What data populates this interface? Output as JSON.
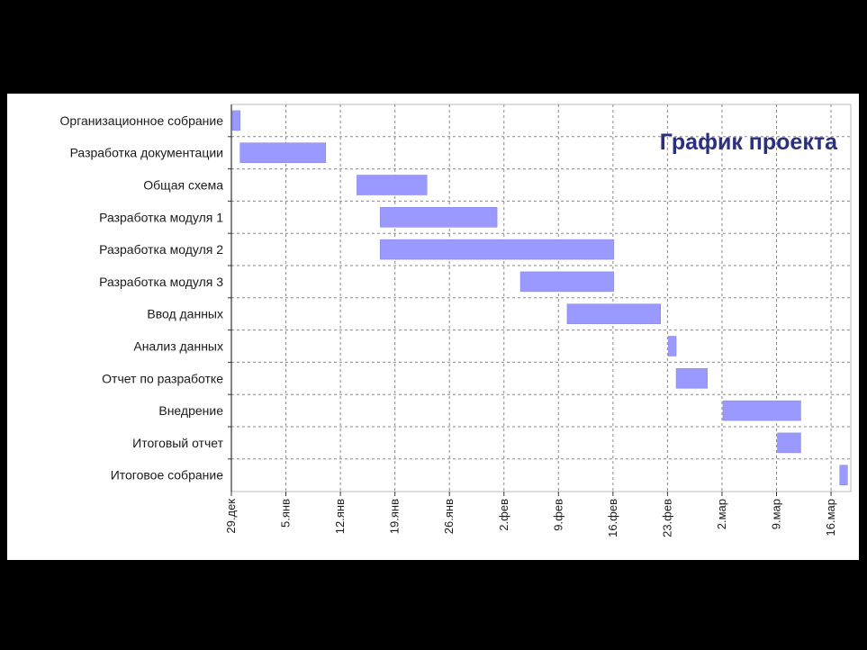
{
  "chart_data": {
    "type": "gantt",
    "title": "График проекта",
    "tasks": [
      {
        "name": "Организационное собрание",
        "start": "29 дек",
        "end": "30 дек"
      },
      {
        "name": "Разработка документации",
        "start": "30 дек",
        "end": "10 янв"
      },
      {
        "name": "Общая схема",
        "start": "14 янв",
        "end": "23 янв"
      },
      {
        "name": "Разработка модуля 1",
        "start": "17 янв",
        "end": "1 фев"
      },
      {
        "name": "Разработка модуля 2",
        "start": "17 янв",
        "end": "16 фев"
      },
      {
        "name": "Разработка модуля 3",
        "start": "4 фев",
        "end": "16 фев"
      },
      {
        "name": "Ввод данных",
        "start": "10 фев",
        "end": "22 фев"
      },
      {
        "name": "Анализ данных",
        "start": "23 фев",
        "end": "24 фев"
      },
      {
        "name": "Отчет по разработке",
        "start": "24 фев",
        "end": "28 фев"
      },
      {
        "name": "Внедрение",
        "start": "2 мар",
        "end": "12 мар"
      },
      {
        "name": "Итоговый отчет",
        "start": "9 мар",
        "end": "12 мар"
      },
      {
        "name": "Итоговое собрание",
        "start": "17 мар",
        "end": "18 мар"
      }
    ],
    "x_tick_labels": [
      "29.дек",
      "5.янв",
      "12.янв",
      "19.янв",
      "26.янв",
      "2.фев",
      "9.фев",
      "16.фев",
      "23.фев",
      "2.мар",
      "9.мар",
      "16.мар"
    ],
    "xlim": [
      "29 дек",
      "18 мар"
    ],
    "grid": true,
    "bar_color": "#9999ff"
  }
}
